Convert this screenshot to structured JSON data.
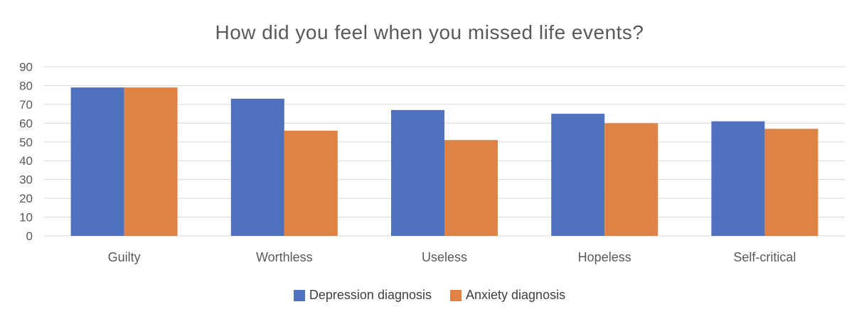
{
  "chart_data": {
    "type": "bar",
    "title": "How did you feel when you missed life events?",
    "categories": [
      "Guilty",
      "Worthless",
      "Useless",
      "Hopeless",
      "Self-critical"
    ],
    "series": [
      {
        "name": "Depression diagnosis",
        "values": [
          79,
          73,
          67,
          65,
          61
        ],
        "color": "#4f71be"
      },
      {
        "name": "Anxiety diagnosis",
        "values": [
          79,
          56,
          51,
          60,
          57
        ],
        "color": "#de8344"
      }
    ],
    "ylim": [
      0,
      90
    ],
    "yticks": [
      0,
      10,
      20,
      30,
      40,
      50,
      60,
      70,
      80,
      90
    ],
    "grid": true,
    "legend_position": "bottom"
  }
}
